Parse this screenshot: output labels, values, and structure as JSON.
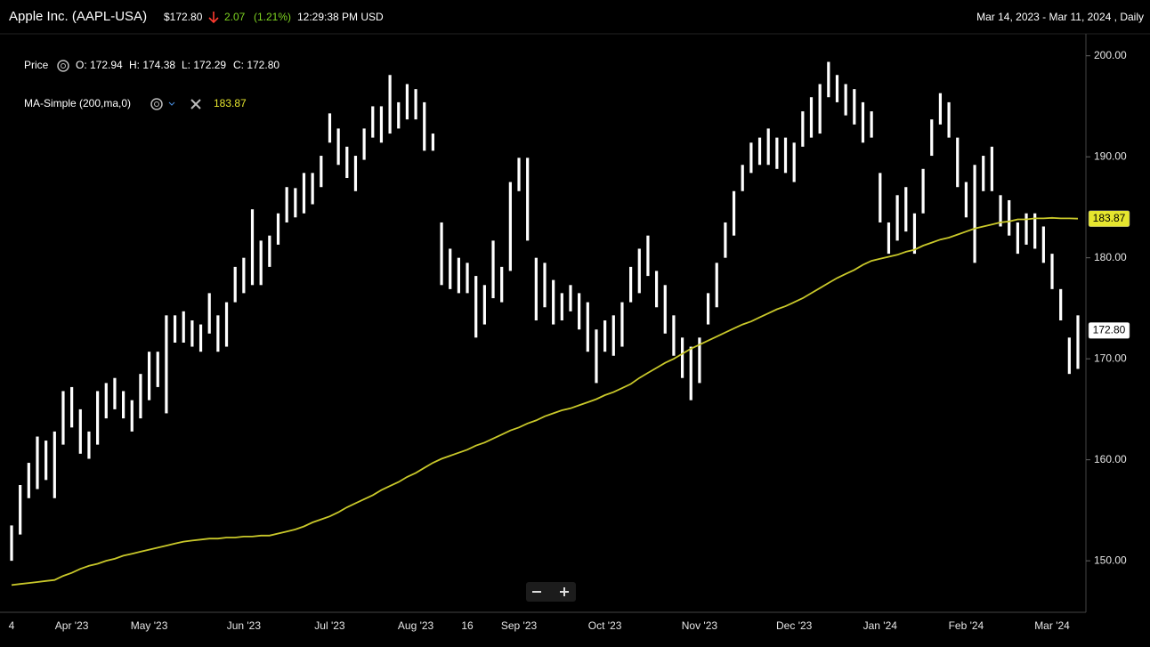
{
  "header": {
    "title": "Apple Inc. (AAPL-USA)",
    "price": "$172.80",
    "change": "2.07",
    "change_pct": "(1.21%)",
    "time": "12:29:38 PM USD",
    "range": "Mar 14, 2023 - Mar 11, 2024 , Daily",
    "ohlc": [
      "O: 172.94",
      "H: 174.38",
      "L: 172.29",
      "C: 172.80"
    ]
  },
  "chart_data": {
    "type": "ohlc",
    "categories": [
      "4",
      null,
      null,
      null,
      null,
      null,
      null,
      "Apr '23",
      null,
      null,
      null,
      null,
      null,
      null,
      null,
      null,
      "May '23",
      null,
      null,
      null,
      null,
      null,
      null,
      null,
      null,
      null,
      null,
      "Jun '23",
      null,
      null,
      null,
      null,
      null,
      null,
      null,
      null,
      null,
      "Jul '23",
      null,
      null,
      null,
      null,
      null,
      null,
      null,
      null,
      null,
      "Aug '23",
      null,
      null,
      null,
      null,
      null,
      "16",
      null,
      null,
      null,
      null,
      null,
      "Sep '23",
      null,
      null,
      null,
      null,
      null,
      null,
      null,
      null,
      null,
      "Oct '23",
      null,
      null,
      null,
      null,
      null,
      null,
      null,
      null,
      null,
      null,
      "Nov '23",
      null,
      null,
      null,
      null,
      null,
      null,
      null,
      null,
      null,
      null,
      "Dec '23",
      null,
      null,
      null,
      null,
      null,
      null,
      null,
      null,
      null,
      "Jan '24",
      null,
      null,
      null,
      null,
      null,
      null,
      null,
      null,
      null,
      "Feb '24",
      null,
      null,
      null,
      null,
      null,
      null,
      null,
      null,
      null,
      "Mar '24",
      null,
      null,
      null
    ],
    "series": [
      {
        "name": "Price",
        "color": "#ffffff",
        "high": [
          153.5,
          157.5,
          159.7,
          162.3,
          161.9,
          162.8,
          166.8,
          167.2,
          165.0,
          162.8,
          166.8,
          167.6,
          168.1,
          166.8,
          165.9,
          168.5,
          170.7,
          170.7,
          174.3,
          174.3,
          174.7,
          173.8,
          173.4,
          176.5,
          174.3,
          175.6,
          179.1,
          180.0,
          184.8,
          181.7,
          182.2,
          184.4,
          187.0,
          186.9,
          188.4,
          188.4,
          190.1,
          194.3,
          192.8,
          191.0,
          190.1,
          192.8,
          195.0,
          195.0,
          198.1,
          195.4,
          197.2,
          196.7,
          195.4,
          192.3,
          183.5,
          180.9,
          180.0,
          179.5,
          178.2,
          177.3,
          181.7,
          179.1,
          187.5,
          189.9,
          189.9,
          180.0,
          179.5,
          177.8,
          176.5,
          177.3,
          176.5,
          175.6,
          172.9,
          173.8,
          174.3,
          175.6,
          179.1,
          180.9,
          182.2,
          178.7,
          177.3,
          174.3,
          172.1,
          171.2,
          172.1,
          176.5,
          179.5,
          183.5,
          186.6,
          189.2,
          191.4,
          191.9,
          192.8,
          191.9,
          191.9,
          191.4,
          194.5,
          195.9,
          197.2,
          199.4,
          198.1,
          197.2,
          196.7,
          195.4,
          194.5,
          188.4,
          183.5,
          186.2,
          187.0,
          184.4,
          188.8,
          193.7,
          196.3,
          195.4,
          191.9,
          187.5,
          189.2,
          190.1,
          191.0,
          186.2,
          185.7,
          183.5,
          184.4,
          184.4,
          183.1,
          180.4,
          176.9,
          172.1,
          174.3
        ],
        "low": [
          150.0,
          152.6,
          156.2,
          157.1,
          158.0,
          156.2,
          161.5,
          163.2,
          160.6,
          160.1,
          161.5,
          164.1,
          165.0,
          164.1,
          162.8,
          164.1,
          165.9,
          167.2,
          164.6,
          171.6,
          171.6,
          171.2,
          170.7,
          172.5,
          170.7,
          171.2,
          175.6,
          176.5,
          177.3,
          177.3,
          179.1,
          181.3,
          183.5,
          184.0,
          184.4,
          185.3,
          187.0,
          191.4,
          189.2,
          187.9,
          186.6,
          189.7,
          191.9,
          191.4,
          192.3,
          192.8,
          193.7,
          193.7,
          190.6,
          190.6,
          177.3,
          176.9,
          176.5,
          176.5,
          172.1,
          173.4,
          176.0,
          175.6,
          178.7,
          186.6,
          181.7,
          173.8,
          175.1,
          173.4,
          173.8,
          174.7,
          172.9,
          170.7,
          167.6,
          170.7,
          170.3,
          171.2,
          175.6,
          176.5,
          178.2,
          175.1,
          172.5,
          170.3,
          168.1,
          165.9,
          167.6,
          173.4,
          175.1,
          180.0,
          182.2,
          186.6,
          188.4,
          189.2,
          189.2,
          188.8,
          188.4,
          187.5,
          191.0,
          191.9,
          192.3,
          195.9,
          195.4,
          194.1,
          193.2,
          191.4,
          191.9,
          183.5,
          180.4,
          181.7,
          182.6,
          180.4,
          184.4,
          190.1,
          193.2,
          191.9,
          187.0,
          184.0,
          179.5,
          186.6,
          186.6,
          183.1,
          182.2,
          180.4,
          181.3,
          180.9,
          179.5,
          176.9,
          173.8,
          168.5,
          169.0
        ],
        "last_value": {
          "value": 172.8,
          "label": "172.80"
        }
      },
      {
        "name": "MA-Simple (200,ma,0)",
        "color": "#c9c82a",
        "values": [
          147.6,
          147.7,
          147.8,
          147.9,
          148.0,
          148.1,
          148.5,
          148.8,
          149.2,
          149.5,
          149.7,
          150.0,
          150.2,
          150.5,
          150.7,
          150.9,
          151.1,
          151.3,
          151.5,
          151.7,
          151.9,
          152.0,
          152.1,
          152.2,
          152.2,
          152.3,
          152.3,
          152.4,
          152.4,
          152.5,
          152.5,
          152.7,
          152.9,
          153.1,
          153.4,
          153.8,
          154.1,
          154.4,
          154.8,
          155.3,
          155.7,
          156.1,
          156.5,
          157.0,
          157.4,
          157.8,
          158.3,
          158.7,
          159.2,
          159.7,
          160.1,
          160.4,
          160.7,
          161.0,
          161.4,
          161.7,
          162.1,
          162.5,
          162.9,
          163.2,
          163.6,
          163.9,
          164.3,
          164.6,
          164.9,
          165.1,
          165.4,
          165.7,
          166.0,
          166.4,
          166.7,
          167.1,
          167.5,
          168.1,
          168.6,
          169.1,
          169.6,
          170.0,
          170.5,
          171.0,
          171.4,
          171.8,
          172.2,
          172.6,
          173.0,
          173.4,
          173.7,
          174.1,
          174.5,
          174.9,
          175.2,
          175.6,
          176.0,
          176.5,
          177.0,
          177.5,
          178.0,
          178.4,
          178.8,
          179.3,
          179.7,
          179.9,
          180.1,
          180.3,
          180.6,
          180.8,
          181.2,
          181.5,
          181.8,
          182.0,
          182.3,
          182.6,
          182.9,
          183.1,
          183.3,
          183.5,
          183.6,
          183.8,
          183.8,
          183.9,
          183.9,
          183.95,
          183.9,
          183.9,
          183.87
        ],
        "last_value": {
          "value": 183.87,
          "label": "183.87"
        }
      }
    ],
    "ylim": [
      144.9,
      202.0
    ],
    "yticks": [
      {
        "value": 150,
        "label": "150.00"
      },
      {
        "value": 160,
        "label": "160.00"
      },
      {
        "value": 170,
        "label": "170.00"
      },
      {
        "value": 180,
        "label": "180.00"
      },
      {
        "value": 190,
        "label": "190.00"
      },
      {
        "value": 200,
        "label": "200.00"
      }
    ],
    "tag_colors": {
      "price": "#ffffff",
      "ma": "#e6e62e"
    }
  }
}
